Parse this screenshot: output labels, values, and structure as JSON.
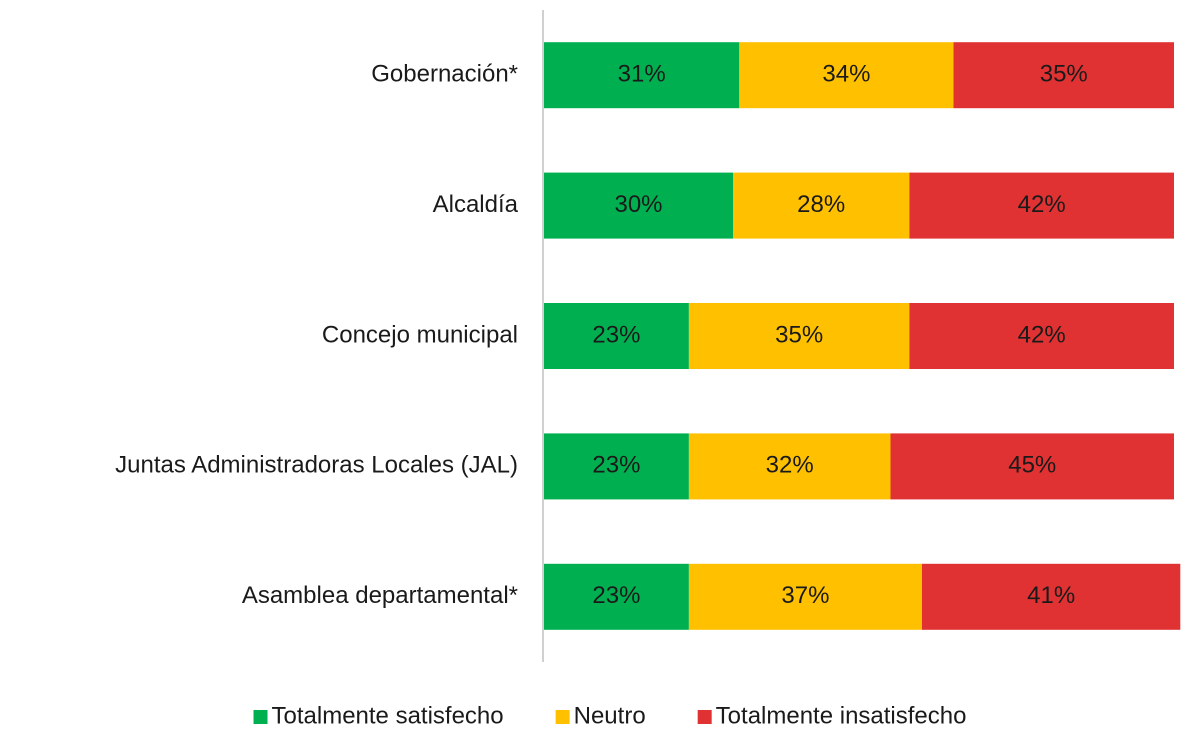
{
  "chart_data": {
    "type": "stacked_barh",
    "categories": [
      "Gobernación*",
      "Alcaldía",
      "Concejo municipal",
      "Juntas Administradoras Locales (JAL)",
      "Asamblea departamental*"
    ],
    "series": [
      {
        "name": "Totalmente satisfecho",
        "color": "#00b050",
        "values": [
          31,
          30,
          23,
          23,
          23
        ],
        "value_labels": [
          "31%",
          "30%",
          "23%",
          "23%",
          "23%"
        ]
      },
      {
        "name": "Neutro",
        "color": "#ffc000",
        "values": [
          34,
          28,
          35,
          32,
          37
        ],
        "value_labels": [
          "34%",
          "28%",
          "35%",
          "32%",
          "37%"
        ]
      },
      {
        "name": "Totalmente insatisfecho",
        "color": "#e03233",
        "values": [
          35,
          42,
          42,
          45,
          41
        ],
        "value_labels": [
          "35%",
          "42%",
          "42%",
          "45%",
          "41%"
        ]
      }
    ],
    "xlim": [
      0,
      100
    ],
    "legend": "bottom"
  }
}
